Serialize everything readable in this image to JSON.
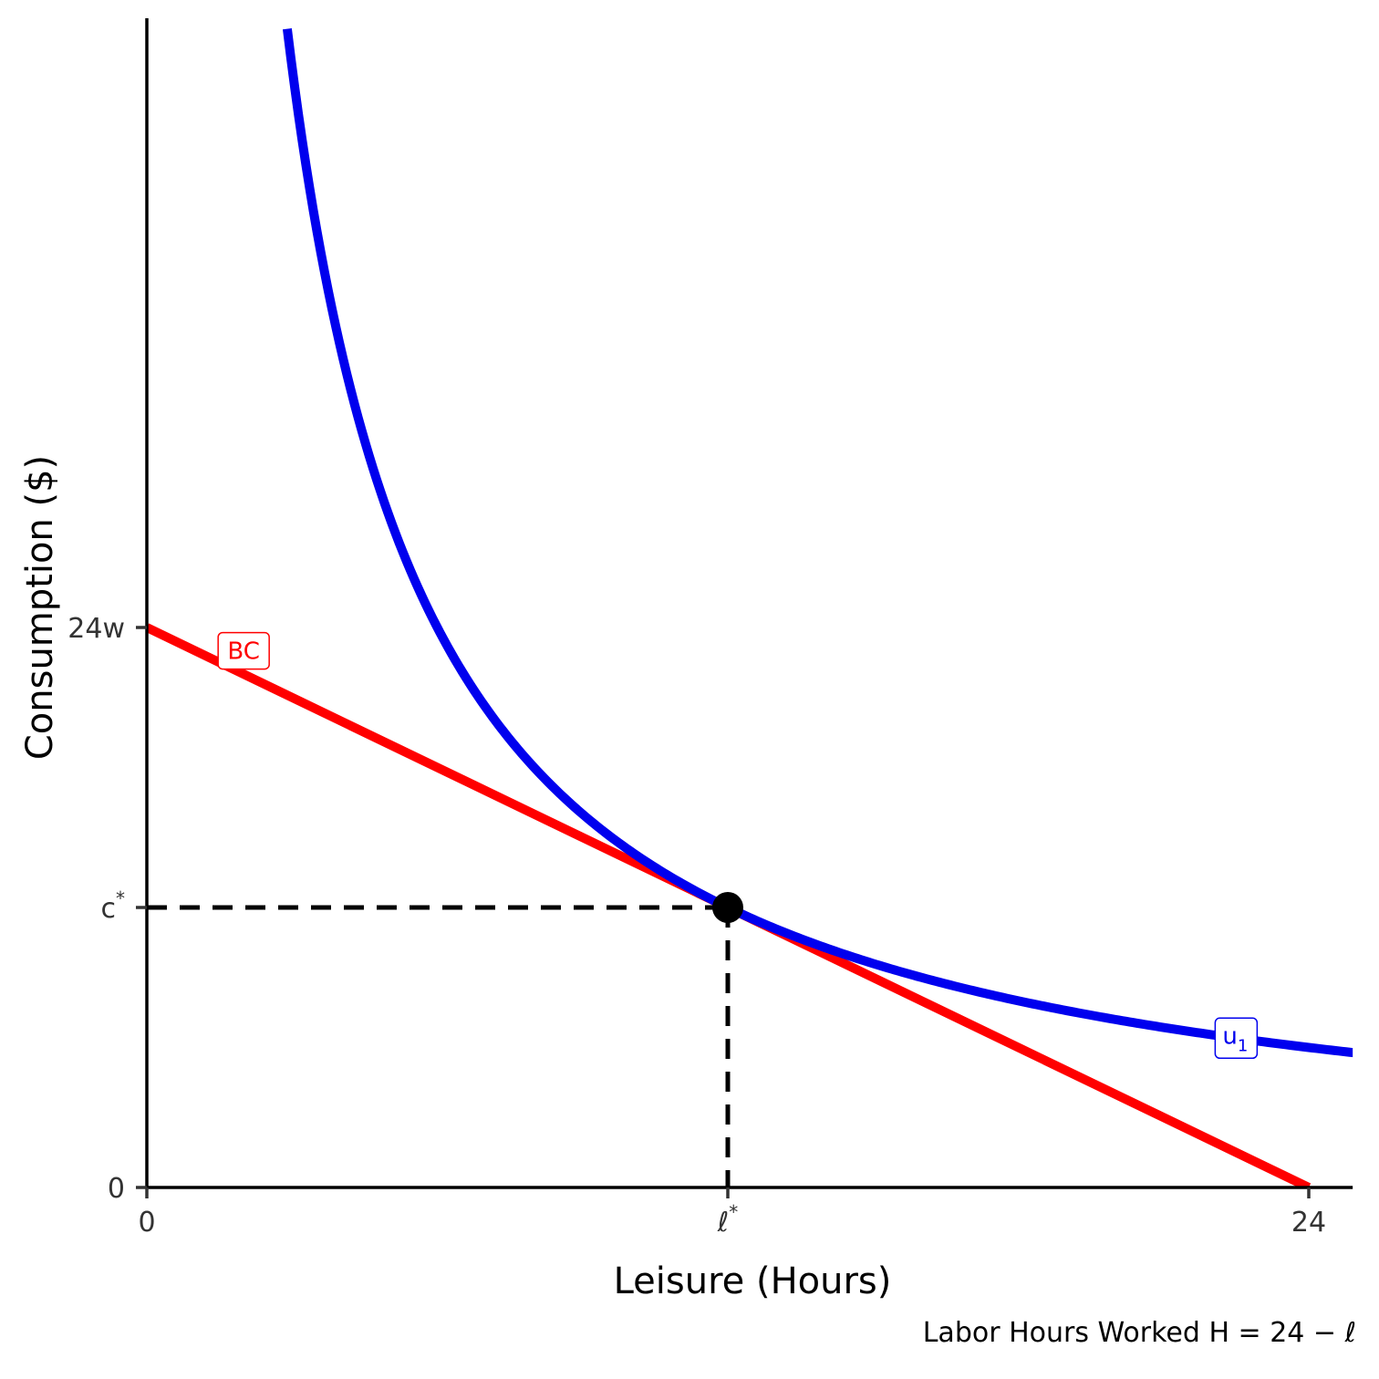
{
  "chart_data": {
    "type": "line",
    "xlabel": "Leisure (Hours)",
    "ylabel": "Consumption ($)",
    "caption": "Labor Hours Worked H = 24 − ℓ",
    "xlim": [
      0,
      26
    ],
    "ylim": [
      0,
      50
    ],
    "x_ticks": [
      {
        "value": 0,
        "label": "0"
      },
      {
        "value": 12,
        "label": "ℓ",
        "sup": "*"
      },
      {
        "value": 24,
        "label": "24"
      }
    ],
    "y_ticks": [
      {
        "value": 0,
        "label": "0"
      },
      {
        "value": 12,
        "label": "c",
        "sup": "*"
      },
      {
        "value": 24,
        "label": "24w"
      }
    ],
    "series": [
      {
        "name": "BC",
        "color": "#ff0000",
        "kind": "budget-line",
        "x": [
          0,
          24
        ],
        "y": [
          24,
          0
        ]
      },
      {
        "name": "u",
        "name_sub": "1",
        "color": "#0000ee",
        "kind": "indifference-curve",
        "k": 144,
        "x_range": [
          2.9,
          26
        ]
      }
    ],
    "optimum": {
      "x": 12,
      "y": 12
    },
    "labels": {
      "BC": {
        "x": 2,
        "y": 23
      },
      "u1": {
        "x": 22.5,
        "y": 6.4
      }
    }
  }
}
